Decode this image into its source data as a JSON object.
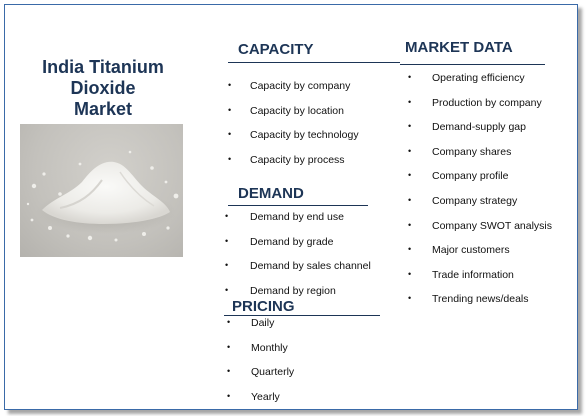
{
  "title": "India Titanium Dioxide Market",
  "title_lines": [
    "India Titanium",
    "Dioxide",
    "Market"
  ],
  "image": {
    "icon": "titanium-dioxide-powder-photo",
    "colors": {
      "background": "#c6c4bf",
      "powder": "#f2f1ee"
    }
  },
  "accent_color": "#1d3556",
  "sections": {
    "capacity": {
      "title": "CAPACITY",
      "items": [
        "Capacity by company",
        "Capacity by location",
        "Capacity by technology",
        "Capacity by process"
      ]
    },
    "demand": {
      "title": "DEMAND",
      "items": [
        "Demand by end use",
        "Demand by grade",
        "Demand by sales channel",
        "Demand by region"
      ]
    },
    "pricing": {
      "title": "PRICING",
      "items": [
        "Daily",
        "Monthly",
        "Quarterly",
        "Yearly"
      ]
    },
    "market_data": {
      "title": "MARKET DATA",
      "items": [
        "Operating efficiency",
        "Production by company",
        "Demand-supply gap",
        "Company shares",
        "Company profile",
        "Company strategy",
        "Company SWOT analysis",
        "Major customers",
        "Trade information",
        "Trending news/deals"
      ]
    }
  }
}
